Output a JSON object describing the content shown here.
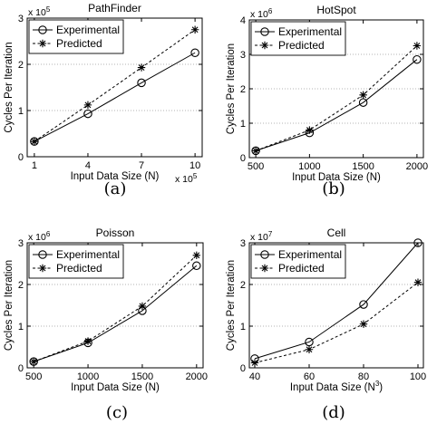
{
  "chart_data": [
    {
      "type": "line",
      "caption": "(a)",
      "title": "PathFinder",
      "xlabel": "Input Data Size (N)",
      "ylabel": "Cycles Per Iteration",
      "x_multiplier": {
        "base": "x 10",
        "exp": "5"
      },
      "y_multiplier": {
        "base": "x 10",
        "exp": "5"
      },
      "xlim": [
        0.6,
        10.4
      ],
      "ylim": [
        0,
        3
      ],
      "xticks": [
        1,
        4,
        7,
        10
      ],
      "yticks": [
        0,
        1,
        2,
        3
      ],
      "grid": "y",
      "legend": "top-left",
      "x": [
        1,
        4,
        7,
        10
      ],
      "series": [
        {
          "name": "Experimental",
          "style": "solid",
          "marker": "circle",
          "values": [
            0.33,
            0.93,
            1.6,
            2.25
          ]
        },
        {
          "name": "Predicted",
          "style": "dashed",
          "marker": "star",
          "values": [
            0.33,
            1.12,
            1.93,
            2.75
          ]
        }
      ]
    },
    {
      "type": "line",
      "caption": "(b)",
      "title": "HotSpot",
      "xlabel": "Input Data Size (N)",
      "ylabel": "Cycles Per Iteration",
      "y_multiplier": {
        "base": "x 10",
        "exp": "6"
      },
      "xlim": [
        440,
        2060
      ],
      "ylim": [
        0,
        4
      ],
      "xticks": [
        500,
        1000,
        1500,
        2000
      ],
      "yticks": [
        0,
        1,
        2,
        3,
        4
      ],
      "grid": "y",
      "legend": "top-left",
      "x": [
        500,
        1000,
        1500,
        2000
      ],
      "series": [
        {
          "name": "Experimental",
          "style": "solid",
          "marker": "circle",
          "values": [
            0.2,
            0.72,
            1.6,
            2.85
          ]
        },
        {
          "name": "Predicted",
          "style": "dashed",
          "marker": "star",
          "values": [
            0.2,
            0.8,
            1.82,
            3.25
          ]
        }
      ]
    },
    {
      "type": "line",
      "caption": "(c)",
      "title": "Poisson",
      "xlabel": "Input Data Size (N)",
      "ylabel": "Cycles Per Iteration",
      "y_multiplier": {
        "base": "x 10",
        "exp": "6"
      },
      "xlim": [
        440,
        2060
      ],
      "ylim": [
        0,
        3
      ],
      "xticks": [
        500,
        1000,
        1500,
        2000
      ],
      "yticks": [
        0,
        1,
        2,
        3
      ],
      "grid": "y",
      "legend": "top-left",
      "x": [
        500,
        1000,
        1500,
        2000
      ],
      "series": [
        {
          "name": "Experimental",
          "style": "solid",
          "marker": "circle",
          "values": [
            0.15,
            0.6,
            1.37,
            2.45
          ]
        },
        {
          "name": "Predicted",
          "style": "dashed",
          "marker": "star",
          "values": [
            0.15,
            0.64,
            1.48,
            2.7
          ]
        }
      ]
    },
    {
      "type": "line",
      "caption": "(d)",
      "title": "Cell",
      "xlabel": "Input Data Size (N",
      "xlabel_sup": "3",
      "xlabel_end": ")",
      "ylabel": "Cycles Per Iteration",
      "y_multiplier": {
        "base": "x 10",
        "exp": "7"
      },
      "xlim": [
        38,
        102
      ],
      "ylim": [
        0,
        3
      ],
      "xticks": [
        40,
        60,
        80,
        100
      ],
      "yticks": [
        0,
        1,
        2,
        3
      ],
      "grid": "y",
      "legend": "top-left",
      "x": [
        40,
        60,
        80,
        100
      ],
      "series": [
        {
          "name": "Experimental",
          "style": "solid",
          "marker": "circle",
          "values": [
            0.22,
            0.62,
            1.52,
            3.0
          ]
        },
        {
          "name": "Predicted",
          "style": "dashed",
          "marker": "star",
          "values": [
            0.12,
            0.44,
            1.05,
            2.05
          ]
        }
      ]
    }
  ]
}
